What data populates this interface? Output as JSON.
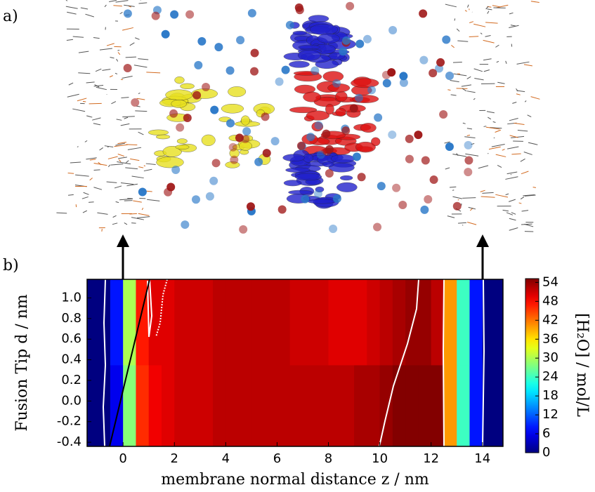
{
  "panel_labels": [
    "a)",
    "b)"
  ],
  "chart_data": {
    "type": "heatmap",
    "colormap": "jet",
    "xlabel": "membrane normal distance z / nm",
    "ylabel": "Fusion Tip d / nm",
    "x_bins": [
      -1.4,
      -1,
      -0.5,
      0,
      0.5,
      1,
      1.5,
      2,
      2.5,
      3,
      3.5,
      4,
      4.5,
      5,
      5.5,
      6,
      6.5,
      7,
      7.5,
      8,
      8.5,
      9,
      9.5,
      10,
      10.5,
      11,
      11.5,
      12,
      12.5,
      13,
      13.5,
      14,
      14.5,
      14.8
    ],
    "y_bins": [
      -0.44,
      0.35,
      1.18
    ],
    "z": [
      [
        0,
        0,
        6,
        28,
        46,
        49,
        50,
        51,
        51,
        51,
        52,
        52,
        52,
        52,
        52,
        52,
        52,
        52,
        52,
        52,
        52,
        53,
        53,
        54,
        55,
        55,
        55,
        55,
        40,
        24,
        8,
        0,
        0
      ],
      [
        0,
        0,
        8,
        30,
        47,
        50,
        50,
        51,
        51,
        51,
        52,
        52,
        52,
        52,
        52,
        52,
        51,
        51,
        51,
        50,
        50,
        50,
        51,
        52,
        53,
        54,
        54,
        52,
        40,
        24,
        8,
        0,
        0
      ]
    ],
    "xlim": [
      -1.4,
      14.8
    ],
    "ylim": [
      -0.44,
      1.18
    ],
    "xticks": [
      0,
      2,
      4,
      6,
      8,
      10,
      12,
      14
    ],
    "yticks": [
      -0.4,
      -0.2,
      {
        "value": 0,
        "label": "0.0"
      },
      0.2,
      0.4,
      0.6,
      0.8,
      {
        "value": 1,
        "label": "1.0"
      }
    ],
    "colorbar": {
      "label": "[H₂O] / mol/L",
      "lim": [
        0,
        55.2
      ],
      "ticks": [
        0,
        6,
        12,
        18,
        24,
        30,
        36,
        42,
        48,
        54
      ]
    }
  }
}
